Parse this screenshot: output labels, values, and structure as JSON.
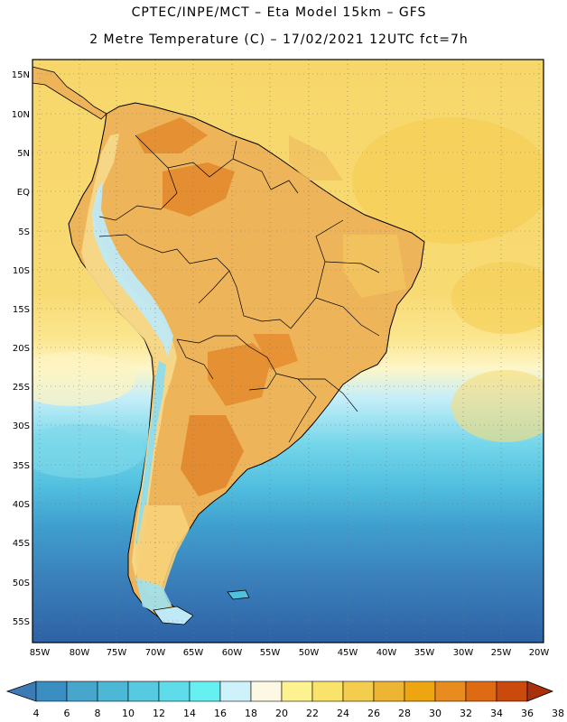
{
  "header": {
    "line1": "CPTEC/INPE/MCT –  Eta Model 15km – GFS",
    "line2": "2 Metre Temperature (C) – 17/02/2021 12UTC fct=7h"
  },
  "axes": {
    "lat_labels": [
      "15N",
      "10N",
      "5N",
      "EQ",
      "5S",
      "10S",
      "15S",
      "20S",
      "25S",
      "30S",
      "35S",
      "40S",
      "45S",
      "50S",
      "55S"
    ],
    "lon_labels": [
      "85W",
      "80W",
      "75W",
      "70W",
      "65W",
      "60W",
      "55W",
      "50W",
      "45W",
      "40W",
      "35W",
      "30W",
      "25W",
      "20W"
    ]
  },
  "colorbar": {
    "labels": [
      "4",
      "6",
      "8",
      "10",
      "12",
      "14",
      "16",
      "18",
      "20",
      "22",
      "24",
      "26",
      "28",
      "30",
      "32",
      "34",
      "36",
      "38"
    ],
    "colors": [
      "#3d7bb6",
      "#3a8ec2",
      "#47a6cc",
      "#4db8d6",
      "#57c9e0",
      "#5edcea",
      "#66f0f2",
      "#cdf2fa",
      "#fdf8e4",
      "#fdf290",
      "#fae36a",
      "#f4cc4e",
      "#eeb434",
      "#eda512",
      "#e98c20",
      "#de6a14",
      "#c94a0c",
      "#a8300a"
    ]
  },
  "map": {
    "ocean_bands": [
      "#f7d76a",
      "#f8dc75",
      "#fae789",
      "#fdf4bd",
      "#c9eff8",
      "#7ad8ea",
      "#52c2e0",
      "#3f9fce",
      "#3a7fba",
      "#2f66a8"
    ],
    "land_colors": {
      "lowland": "#eeb45a",
      "hot": "#e38a2c",
      "mountain": "#f4d98a",
      "snow": "#bfe9f6"
    }
  }
}
